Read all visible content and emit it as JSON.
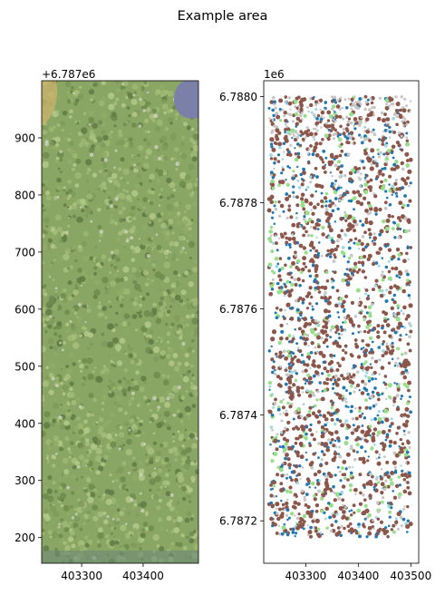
{
  "figure": {
    "title": "Example area"
  },
  "chart_data": [
    {
      "type": "image",
      "description_type": "aerial orthophoto",
      "offset_label": "+6.787e6",
      "xlim": [
        403235,
        403490
      ],
      "ylim": [
        155,
        1000
      ],
      "xticks": [
        403300,
        403400
      ],
      "xtick_labels": [
        "403300",
        "403400"
      ],
      "yticks": [
        200,
        300,
        400,
        500,
        600,
        700,
        800,
        900
      ],
      "ytick_labels": [
        "200",
        "300",
        "400",
        "500",
        "600",
        "700",
        "800",
        "900"
      ],
      "colors": {
        "forest": "#8aa664",
        "dark_forest": "#4a6337",
        "lake": "#7b80a8",
        "shore": "#c7b26a"
      }
    },
    {
      "type": "scatter",
      "offset_label": "1e6",
      "xlim": [
        403220,
        403515
      ],
      "ylim": [
        6.78712,
        6.78803
      ],
      "xticks": [
        403300,
        403400,
        403500
      ],
      "xtick_labels": [
        "403300",
        "403400",
        "403500"
      ],
      "yticks": [
        6.7872,
        6.7874,
        6.7876,
        6.7878,
        6.788
      ],
      "ytick_labels": [
        "6.7872",
        "6.7874",
        "6.7876",
        "6.7878",
        "6.7880"
      ],
      "data_extent": {
        "x": [
          403230,
          403500
        ],
        "y": [
          6.78717,
          6.788
        ]
      },
      "series": [
        {
          "color": "#8c564b",
          "share": 0.46
        },
        {
          "color": "#1f77b4",
          "share": 0.22
        },
        {
          "color": "#c7c7c7",
          "share": 0.18
        },
        {
          "color": "#98df8a",
          "share": 0.09
        },
        {
          "color": "#9edae5",
          "share": 0.05
        }
      ]
    }
  ]
}
